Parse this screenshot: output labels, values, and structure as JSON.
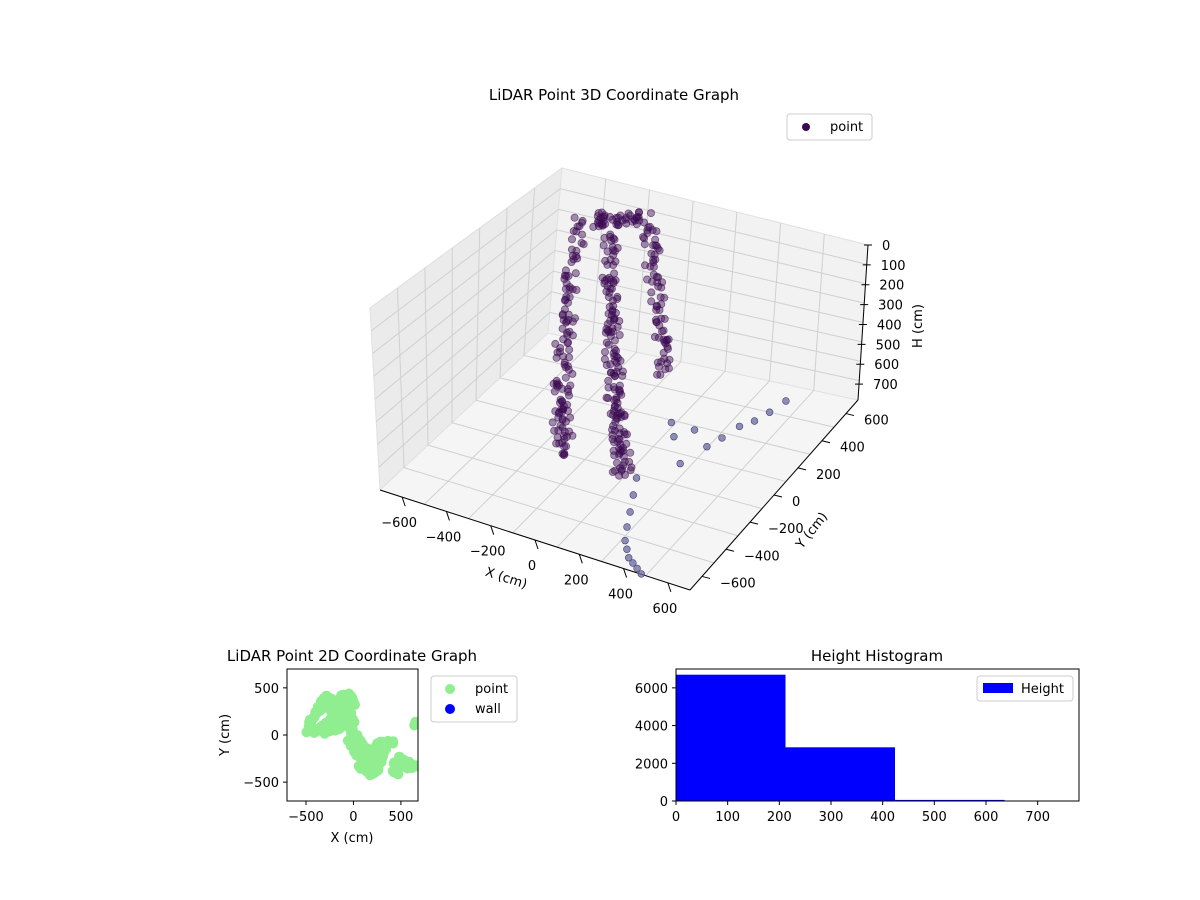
{
  "chart_data": [
    {
      "type": "scatter",
      "title": "LiDAR Point 3D Coordinate Graph",
      "xlabel": "X (cm)",
      "ylabel": "Y (cm)",
      "zlabel": "H (cm)",
      "x_ticks": [
        "−600",
        "−400",
        "−200",
        "0",
        "200",
        "400",
        "600"
      ],
      "y_ticks": [
        "−600",
        "−400",
        "−200",
        "0",
        "200",
        "400",
        "600"
      ],
      "z_ticks": [
        "0",
        "100",
        "200",
        "300",
        "400",
        "500",
        "600",
        "700"
      ],
      "xlim": [
        -700,
        700
      ],
      "ylim": [
        -700,
        700
      ],
      "zlim": [
        0,
        780
      ],
      "z_inverted": true,
      "grid": true,
      "legend": {
        "placement": "top-right",
        "entries": [
          {
            "label": "point",
            "color": "#3b0a52"
          }
        ]
      },
      "series": [
        {
          "name": "point",
          "color": "#3b0a52",
          "outlier_color": "#6a6a9a",
          "main_cluster": [
            [
              -380,
              430,
              80
            ],
            [
              -350,
              410,
              60
            ],
            [
              -320,
              390,
              40
            ],
            [
              -300,
              450,
              70
            ],
            [
              -280,
              380,
              90
            ],
            [
              -260,
              340,
              120
            ],
            [
              -240,
              300,
              150
            ],
            [
              -220,
              260,
              180
            ],
            [
              -200,
              230,
              200
            ],
            [
              -180,
              200,
              230
            ],
            [
              -160,
              170,
              250
            ],
            [
              -140,
              140,
              280
            ],
            [
              -120,
              110,
              300
            ],
            [
              -100,
              80,
              330
            ],
            [
              -80,
              50,
              350
            ],
            [
              -60,
              20,
              370
            ],
            [
              -40,
              -10,
              390
            ],
            [
              -20,
              -40,
              400
            ],
            [
              0,
              -70,
              420
            ],
            [
              20,
              -100,
              440
            ],
            [
              40,
              -130,
              460
            ],
            [
              60,
              -160,
              480
            ],
            [
              80,
              -190,
              490
            ],
            [
              100,
              -220,
              500
            ],
            [
              120,
              -250,
              520
            ],
            [
              140,
              -280,
              530
            ],
            [
              160,
              -310,
              540
            ],
            [
              180,
              -340,
              550
            ],
            [
              200,
              -370,
              560
            ],
            [
              220,
              -400,
              570
            ],
            [
              -420,
              350,
              50
            ],
            [
              -400,
              300,
              100
            ],
            [
              -380,
              250,
              150
            ],
            [
              -360,
              200,
              180
            ],
            [
              -340,
              150,
              220
            ],
            [
              -320,
              100,
              250
            ],
            [
              -300,
              60,
              280
            ],
            [
              -280,
              20,
              310
            ],
            [
              -260,
              -20,
              340
            ],
            [
              -240,
              -60,
              370
            ],
            [
              -220,
              -100,
              390
            ],
            [
              -200,
              -140,
              410
            ],
            [
              -180,
              -180,
              430
            ],
            [
              -160,
              -220,
              450
            ],
            [
              -140,
              -260,
              470
            ],
            [
              -120,
              -300,
              480
            ],
            [
              -100,
              -330,
              500
            ],
            [
              -80,
              -360,
              510
            ],
            [
              -60,
              -390,
              520
            ],
            [
              -40,
              -420,
              530
            ],
            [
              -250,
              420,
              30
            ],
            [
              -220,
              440,
              20
            ],
            [
              -190,
              460,
              25
            ],
            [
              -160,
              450,
              40
            ],
            [
              -130,
              420,
              60
            ],
            [
              -100,
              380,
              90
            ],
            [
              -70,
              340,
              120
            ],
            [
              -40,
              300,
              150
            ],
            [
              -10,
              260,
              180
            ],
            [
              20,
              220,
              210
            ],
            [
              50,
              180,
              240
            ],
            [
              80,
              140,
              270
            ],
            [
              110,
              100,
              300
            ],
            [
              140,
              60,
              330
            ],
            [
              170,
              20,
              360
            ]
          ],
          "outliers": [
            [
              240,
              -30,
              560
            ],
            [
              270,
              -60,
              600
            ],
            [
              310,
              40,
              620
            ],
            [
              330,
              -110,
              680
            ],
            [
              360,
              60,
              700
            ],
            [
              380,
              150,
              710
            ],
            [
              400,
              260,
              720
            ],
            [
              430,
              330,
              730
            ],
            [
              450,
              420,
              740
            ],
            [
              470,
              520,
              745
            ],
            [
              210,
              -250,
              700
            ],
            [
              240,
              -330,
              720
            ],
            [
              270,
              -410,
              740
            ],
            [
              300,
              -490,
              750
            ],
            [
              330,
              -560,
              760
            ],
            [
              360,
              -600,
              765
            ],
            [
              390,
              -640,
              770
            ],
            [
              420,
              -660,
              772
            ],
            [
              450,
              -680,
              775
            ],
            [
              480,
              -700,
              778
            ]
          ]
        }
      ]
    },
    {
      "type": "scatter",
      "title": "LiDAR Point 2D Coordinate Graph",
      "xlabel": "X (cm)",
      "ylabel": "Y (cm)",
      "xlim": [
        -700,
        680
      ],
      "ylim": [
        -700,
        700
      ],
      "x_ticks": [
        -500,
        0,
        500
      ],
      "y_ticks": [
        500,
        0,
        -500
      ],
      "legend": {
        "placement": "outside-right",
        "entries": [
          {
            "label": "point",
            "color": "#90ee90"
          },
          {
            "label": "wall",
            "color": "#0000ff"
          }
        ]
      },
      "series": [
        {
          "name": "point",
          "color": "#90ee90",
          "points": [
            [
              -480,
              40
            ],
            [
              -450,
              120
            ],
            [
              -420,
              200
            ],
            [
              -390,
              260
            ],
            [
              -360,
              300
            ],
            [
              -330,
              340
            ],
            [
              -300,
              380
            ],
            [
              -270,
              400
            ],
            [
              -240,
              380
            ],
            [
              -210,
              360
            ],
            [
              -180,
              330
            ],
            [
              -150,
              380
            ],
            [
              -120,
              410
            ],
            [
              -90,
              380
            ],
            [
              -60,
              350
            ],
            [
              -30,
              420
            ],
            [
              -10,
              380
            ],
            [
              0,
              330
            ],
            [
              -400,
              40
            ],
            [
              -360,
              60
            ],
            [
              -320,
              100
            ],
            [
              -280,
              140
            ],
            [
              -240,
              180
            ],
            [
              -200,
              220
            ],
            [
              -160,
              240
            ],
            [
              -120,
              260
            ],
            [
              -80,
              280
            ],
            [
              -40,
              230
            ],
            [
              -20,
              170
            ],
            [
              0,
              120
            ],
            [
              -300,
              30
            ],
            [
              -250,
              40
            ],
            [
              -200,
              60
            ],
            [
              -150,
              80
            ],
            [
              -100,
              120
            ],
            [
              -50,
              80
            ],
            [
              -20,
              20
            ],
            [
              0,
              -30
            ],
            [
              20,
              -80
            ],
            [
              40,
              -130
            ],
            [
              60,
              -180
            ],
            [
              80,
              -230
            ],
            [
              100,
              -280
            ],
            [
              120,
              -330
            ],
            [
              140,
              -370
            ],
            [
              160,
              -400
            ],
            [
              180,
              -420
            ],
            [
              210,
              -410
            ],
            [
              240,
              -380
            ],
            [
              260,
              -330
            ],
            [
              280,
              -280
            ],
            [
              300,
              -230
            ],
            [
              320,
              -180
            ],
            [
              340,
              -140
            ],
            [
              -40,
              -60
            ],
            [
              -10,
              -110
            ],
            [
              20,
              -160
            ],
            [
              50,
              -210
            ],
            [
              80,
              -260
            ],
            [
              110,
              -310
            ],
            [
              200,
              -180
            ],
            [
              230,
              -140
            ],
            [
              260,
              -100
            ],
            [
              290,
              -80
            ],
            [
              360,
              -60
            ],
            [
              420,
              -80
            ],
            [
              440,
              -300
            ],
            [
              480,
              -320
            ],
            [
              520,
              -330
            ],
            [
              560,
              -340
            ],
            [
              600,
              -340
            ],
            [
              640,
              -330
            ],
            [
              470,
              -420
            ],
            [
              430,
              -380
            ],
            [
              500,
              -250
            ],
            [
              540,
              -270
            ],
            [
              580,
              -300
            ],
            [
              660,
              120
            ],
            [
              -460,
              90
            ],
            [
              -440,
              160
            ],
            [
              -410,
              230
            ],
            [
              -340,
              260
            ],
            [
              -300,
              300
            ],
            [
              -260,
              320
            ],
            [
              -230,
              260
            ],
            [
              -200,
              140
            ],
            [
              -170,
              100
            ],
            [
              -140,
              180
            ],
            [
              -110,
              220
            ],
            [
              -70,
              200
            ],
            [
              -30,
              100
            ],
            [
              0,
              60
            ],
            [
              30,
              -20
            ],
            [
              60,
              -60
            ],
            [
              90,
              -110
            ],
            [
              130,
              -150
            ],
            [
              160,
              -210
            ],
            [
              190,
              -260
            ],
            [
              220,
              -310
            ],
            [
              250,
              -360
            ],
            [
              150,
              -300
            ],
            [
              70,
              -340
            ]
          ]
        },
        {
          "name": "wall",
          "color": "#0000ff",
          "points": []
        }
      ]
    },
    {
      "type": "bar",
      "title": "Height Histogram",
      "xlabel": "",
      "ylabel": "",
      "xlim": [
        0,
        780
      ],
      "ylim": [
        0,
        7000
      ],
      "x_ticks": [
        0,
        100,
        200,
        300,
        400,
        500,
        600,
        700
      ],
      "y_ticks": [
        0,
        2000,
        4000,
        6000
      ],
      "legend": {
        "placement": "top-right",
        "entries": [
          {
            "label": "Height",
            "color": "#0000ff"
          }
        ]
      },
      "series": [
        {
          "name": "Height",
          "color": "#0000ff",
          "bins": [
            [
              0,
              212,
              6700
            ],
            [
              212,
              424,
              2850
            ],
            [
              424,
              636,
              60
            ]
          ]
        }
      ]
    }
  ]
}
